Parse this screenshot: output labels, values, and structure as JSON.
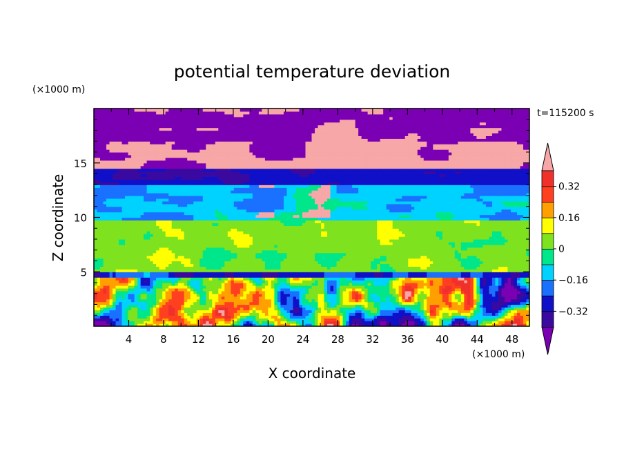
{
  "chart_data": {
    "type": "heatmap",
    "title": "potential temperature deviation",
    "xlabel": "X coordinate",
    "ylabel": "Z coordinate",
    "x_unit": "(×1000 m)",
    "y_unit": "(×1000 m)",
    "time_label": "t=115200 s",
    "xlim": [
      0,
      50
    ],
    "ylim": [
      0,
      20
    ],
    "x_ticks": [
      4,
      8,
      12,
      16,
      20,
      24,
      28,
      32,
      36,
      40,
      44,
      48
    ],
    "y_ticks": [
      5,
      10,
      15
    ],
    "colorbar": {
      "levels": [
        -0.4,
        -0.32,
        -0.24,
        -0.16,
        -0.08,
        0,
        0.08,
        0.16,
        0.24,
        0.32,
        0.4
      ],
      "tick_labels": [
        "0.32",
        "0.16",
        "0",
        "−0.16",
        "−0.32"
      ],
      "tick_values": [
        0.32,
        0.16,
        0,
        -0.16,
        -0.32
      ],
      "colors": [
        "#7b00b4",
        "#3a0aa0",
        "#1010c8",
        "#1a70ff",
        "#00d2ff",
        "#00e68a",
        "#7ee21e",
        "#ffff00",
        "#ffa000",
        "#ff4020",
        "#f0302a",
        "#f7a7a7"
      ],
      "extend": "both"
    },
    "grid": false
  }
}
